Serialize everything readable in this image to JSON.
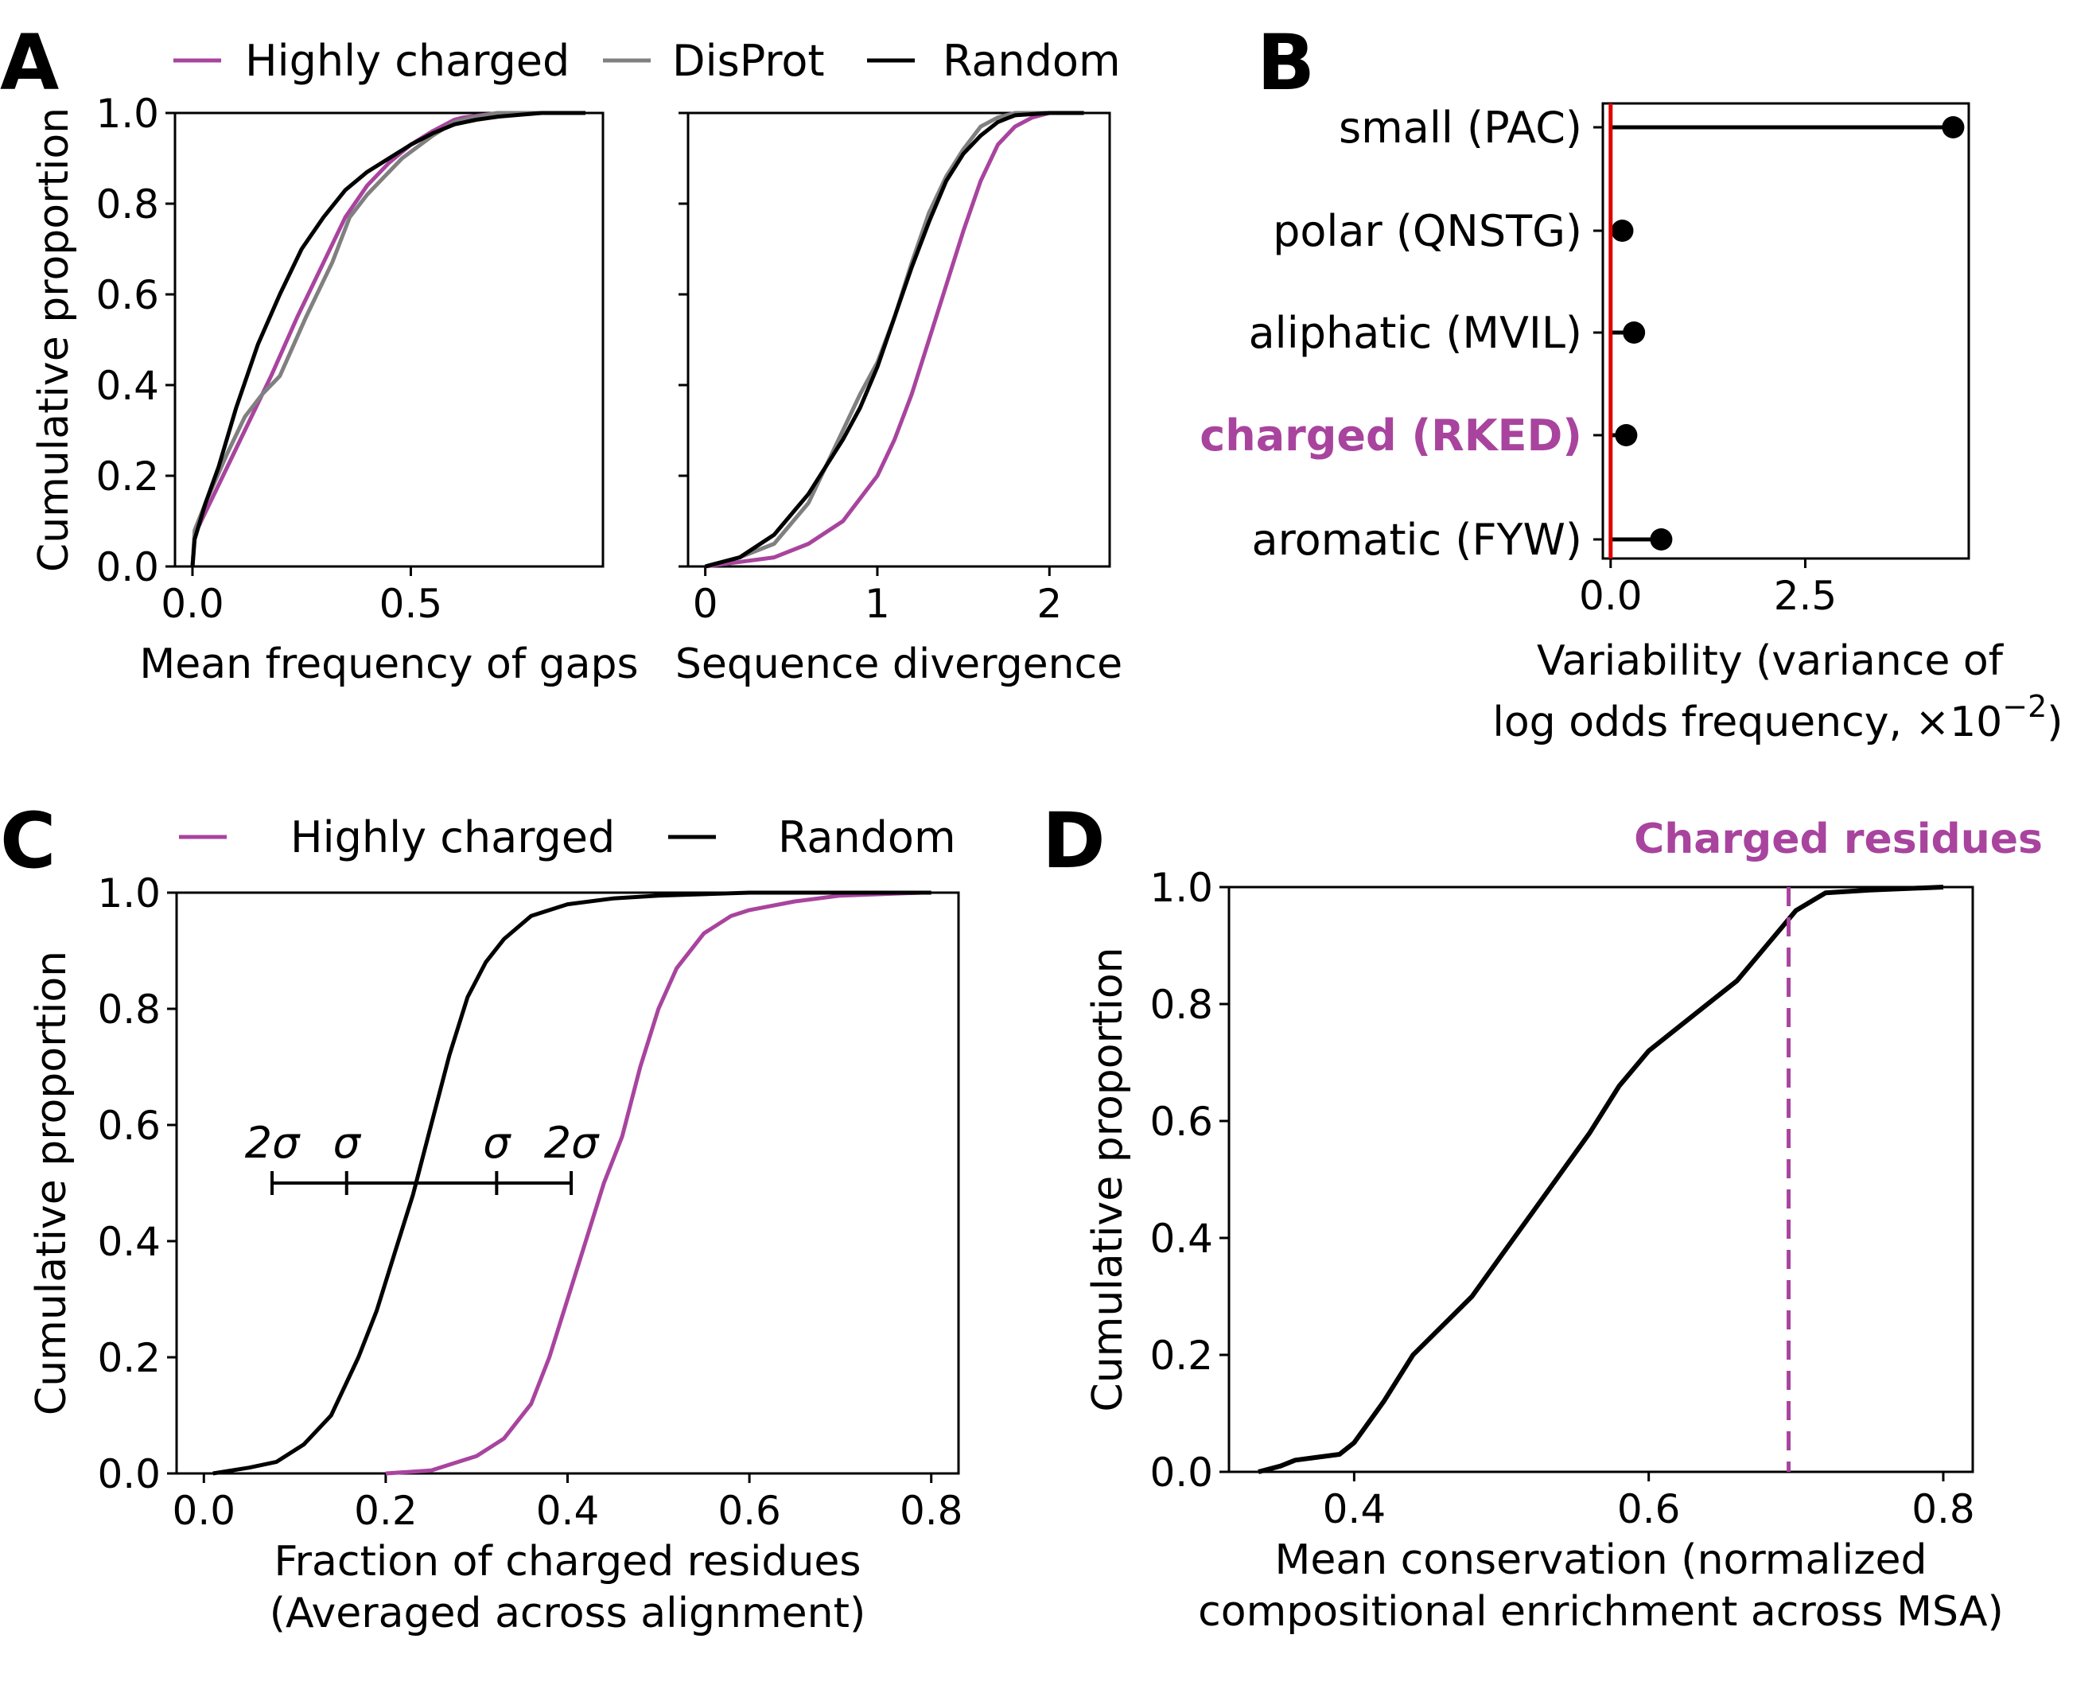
{
  "colors": {
    "charged": "#a8449e",
    "disprot": "#808080",
    "random": "#000000",
    "reference": "#e00000"
  },
  "chart_data": [
    {
      "panel": "A",
      "type": "line",
      "legend": [
        {
          "name": "Highly charged",
          "color": "#a8449e"
        },
        {
          "name": "DisProt",
          "color": "#808080"
        },
        {
          "name": "Random",
          "color": "#000000"
        }
      ],
      "legend_placement": "top",
      "subplots": [
        {
          "id": "A1",
          "xlabel": "Mean frequency of gaps",
          "ylabel": "Cumulative proportion",
          "xlim": [
            -0.04,
            0.94
          ],
          "ylim": [
            0,
            1.0
          ],
          "xticks": [
            "0.0",
            "0.5"
          ],
          "xtick_values": [
            0.0,
            0.5
          ],
          "yticks": [
            "0.0",
            "0.2",
            "0.4",
            "0.6",
            "0.8",
            "1.0"
          ],
          "ytick_values": [
            0.0,
            0.2,
            0.4,
            0.6,
            0.8,
            1.0
          ],
          "series": [
            {
              "name": "Highly charged",
              "color": "#a8449e",
              "x": [
                0.0,
                0.005,
                0.03,
                0.07,
                0.12,
                0.18,
                0.24,
                0.3,
                0.35,
                0.4,
                0.45,
                0.5,
                0.55,
                0.6,
                0.62,
                0.66,
                0.7,
                0.8,
                0.9
              ],
              "y": [
                0.0,
                0.07,
                0.12,
                0.2,
                0.3,
                0.42,
                0.55,
                0.67,
                0.77,
                0.84,
                0.89,
                0.93,
                0.96,
                0.985,
                0.99,
                0.995,
                1.0,
                1.0,
                1.0
              ]
            },
            {
              "name": "DisProt",
              "color": "#808080",
              "x": [
                0.0,
                0.005,
                0.03,
                0.08,
                0.12,
                0.16,
                0.2,
                0.26,
                0.32,
                0.36,
                0.4,
                0.44,
                0.48,
                0.55,
                0.6,
                0.64,
                0.7,
                0.8,
                0.9
              ],
              "y": [
                0.0,
                0.08,
                0.14,
                0.25,
                0.33,
                0.38,
                0.42,
                0.55,
                0.67,
                0.77,
                0.82,
                0.86,
                0.9,
                0.95,
                0.98,
                0.99,
                1.0,
                1.0,
                1.0
              ]
            },
            {
              "name": "Random",
              "color": "#000000",
              "x": [
                0.0,
                0.005,
                0.03,
                0.06,
                0.1,
                0.15,
                0.2,
                0.25,
                0.3,
                0.35,
                0.4,
                0.45,
                0.5,
                0.55,
                0.6,
                0.65,
                0.7,
                0.75,
                0.8,
                0.9
              ],
              "y": [
                0.0,
                0.06,
                0.14,
                0.22,
                0.35,
                0.49,
                0.6,
                0.7,
                0.77,
                0.83,
                0.87,
                0.9,
                0.93,
                0.955,
                0.975,
                0.985,
                0.992,
                0.996,
                1.0,
                1.0
              ]
            }
          ]
        },
        {
          "id": "A2",
          "xlabel": "Sequence divergence",
          "ylabel": "",
          "xlim": [
            -0.1,
            2.35
          ],
          "ylim": [
            0,
            1.0
          ],
          "xticks": [
            "0",
            "1",
            "2"
          ],
          "xtick_values": [
            0,
            1,
            2
          ],
          "yticks": [],
          "ytick_values": [
            0.0,
            0.2,
            0.4,
            0.6,
            0.8,
            1.0
          ],
          "series": [
            {
              "name": "Highly charged",
              "color": "#a8449e",
              "x": [
                0.0,
                0.2,
                0.4,
                0.6,
                0.8,
                1.0,
                1.1,
                1.2,
                1.3,
                1.4,
                1.5,
                1.6,
                1.7,
                1.8,
                1.9,
                2.0,
                2.2
              ],
              "y": [
                0.0,
                0.01,
                0.02,
                0.05,
                0.1,
                0.2,
                0.28,
                0.38,
                0.5,
                0.62,
                0.74,
                0.85,
                0.93,
                0.97,
                0.99,
                1.0,
                1.0
              ]
            },
            {
              "name": "DisProt",
              "color": "#808080",
              "x": [
                0.0,
                0.2,
                0.4,
                0.6,
                0.8,
                0.9,
                1.0,
                1.1,
                1.2,
                1.3,
                1.4,
                1.5,
                1.6,
                1.7,
                1.8,
                2.0,
                2.2
              ],
              "y": [
                0.0,
                0.02,
                0.05,
                0.14,
                0.3,
                0.38,
                0.45,
                0.55,
                0.67,
                0.78,
                0.86,
                0.92,
                0.97,
                0.99,
                1.0,
                1.0,
                1.0
              ]
            },
            {
              "name": "Random",
              "color": "#000000",
              "x": [
                0.0,
                0.2,
                0.4,
                0.6,
                0.8,
                0.9,
                1.0,
                1.1,
                1.2,
                1.3,
                1.4,
                1.5,
                1.6,
                1.7,
                1.8,
                2.0,
                2.2
              ],
              "y": [
                0.0,
                0.02,
                0.07,
                0.16,
                0.28,
                0.35,
                0.44,
                0.55,
                0.66,
                0.76,
                0.85,
                0.91,
                0.95,
                0.98,
                0.995,
                1.0,
                1.0
              ]
            }
          ]
        }
      ]
    },
    {
      "panel": "B",
      "type": "lollipop",
      "xlabel_line1": "Variability (variance of",
      "xlabel_line2": "log odds frequency, ×10",
      "xlabel_exp": "−2",
      "xlabel_close": ")",
      "xlim": [
        -0.1,
        4.6
      ],
      "xticks": [
        "0.0",
        "2.5"
      ],
      "xtick_values": [
        0.0,
        2.5
      ],
      "reference_x": 0.0,
      "categories": [
        "small (PAC)",
        "polar (QNSTG)",
        "aliphatic (MVIL)",
        "charged (RKED)",
        "aromatic (FYW)"
      ],
      "highlight": "charged (RKED)",
      "values": [
        4.4,
        0.15,
        0.3,
        0.2,
        0.65
      ]
    },
    {
      "panel": "C",
      "type": "line",
      "legend": [
        {
          "name": "Highly charged",
          "color": "#a8449e"
        },
        {
          "name": "Random",
          "color": "#000000"
        }
      ],
      "legend_placement": "top",
      "xlabel_line1": "Fraction of charged residues",
      "xlabel_line2": "(Averaged across alignment)",
      "ylabel": "Cumulative proportion",
      "xlim": [
        -0.03,
        0.83
      ],
      "ylim": [
        0,
        1.0
      ],
      "xticks": [
        "0.0",
        "0.2",
        "0.4",
        "0.6",
        "0.8"
      ],
      "xtick_values": [
        0.0,
        0.2,
        0.4,
        0.6,
        0.8
      ],
      "yticks": [
        "0.0",
        "0.2",
        "0.4",
        "0.6",
        "0.8",
        "1.0"
      ],
      "ytick_values": [
        0.0,
        0.2,
        0.4,
        0.6,
        0.8,
        1.0
      ],
      "sigma_bar": {
        "y": 0.5,
        "ticks_x": [
          0.075,
          0.157,
          0.322,
          0.404
        ],
        "labels": [
          "2σ",
          "σ",
          "σ",
          "2σ"
        ]
      },
      "series": [
        {
          "name": "Highly charged",
          "color": "#a8449e",
          "x": [
            0.2,
            0.25,
            0.3,
            0.33,
            0.36,
            0.38,
            0.4,
            0.42,
            0.44,
            0.46,
            0.48,
            0.5,
            0.52,
            0.55,
            0.58,
            0.6,
            0.65,
            0.7,
            0.79
          ],
          "y": [
            0.0,
            0.005,
            0.03,
            0.06,
            0.12,
            0.2,
            0.3,
            0.4,
            0.5,
            0.58,
            0.7,
            0.8,
            0.87,
            0.93,
            0.96,
            0.97,
            0.985,
            0.995,
            1.0
          ]
        },
        {
          "name": "Random",
          "color": "#000000",
          "x": [
            0.01,
            0.05,
            0.08,
            0.11,
            0.14,
            0.17,
            0.19,
            0.21,
            0.23,
            0.25,
            0.27,
            0.29,
            0.31,
            0.33,
            0.36,
            0.4,
            0.45,
            0.5,
            0.6,
            0.7,
            0.8
          ],
          "y": [
            0.0,
            0.01,
            0.02,
            0.05,
            0.1,
            0.2,
            0.28,
            0.38,
            0.48,
            0.6,
            0.72,
            0.82,
            0.88,
            0.92,
            0.96,
            0.98,
            0.99,
            0.995,
            1.0,
            1.0,
            1.0
          ]
        }
      ]
    },
    {
      "panel": "D",
      "type": "line",
      "xlabel_line1": "Mean conservation (normalized",
      "xlabel_line2": "compositional enrichment across MSA)",
      "ylabel": "Cumulative proportion",
      "xlim": [
        0.315,
        0.82
      ],
      "ylim": [
        0,
        1.0
      ],
      "xticks": [
        "0.4",
        "0.6",
        "0.8"
      ],
      "xtick_values": [
        0.4,
        0.6,
        0.8
      ],
      "yticks": [
        "0.0",
        "0.2",
        "0.4",
        "0.6",
        "0.8",
        "1.0"
      ],
      "ytick_values": [
        0.0,
        0.2,
        0.4,
        0.6,
        0.8,
        1.0
      ],
      "reference_line": {
        "x": 0.695,
        "label": "Charged residues",
        "color": "#a8449e"
      },
      "series": [
        {
          "name": "",
          "color": "#000000",
          "x": [
            0.335,
            0.35,
            0.36,
            0.39,
            0.4,
            0.42,
            0.44,
            0.46,
            0.48,
            0.5,
            0.52,
            0.54,
            0.56,
            0.58,
            0.6,
            0.62,
            0.64,
            0.66,
            0.68,
            0.7,
            0.72,
            0.75,
            0.8
          ],
          "y": [
            0.0,
            0.01,
            0.02,
            0.03,
            0.05,
            0.12,
            0.2,
            0.25,
            0.3,
            0.37,
            0.44,
            0.51,
            0.58,
            0.66,
            0.72,
            0.76,
            0.8,
            0.84,
            0.9,
            0.96,
            0.99,
            0.995,
            1.0
          ]
        }
      ]
    }
  ]
}
